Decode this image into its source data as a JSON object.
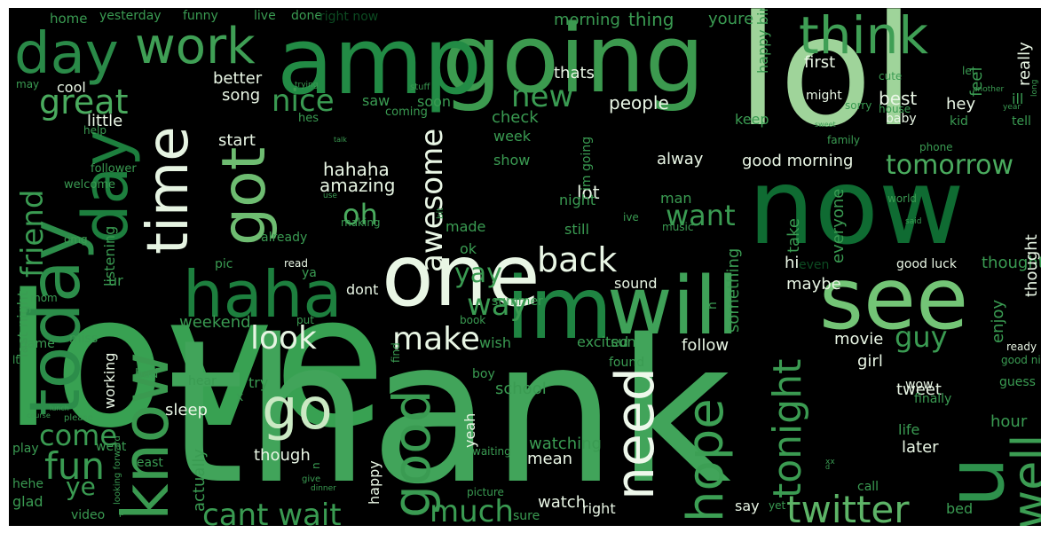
{
  "words": [
    {
      "text": "love",
      "color": "#3a9b52"
    },
    {
      "text": "thank",
      "color": "#41a45a"
    },
    {
      "text": "lol",
      "color": "#9fd49a"
    },
    {
      "text": "going",
      "color": "#3c9a4f"
    },
    {
      "text": "amp",
      "color": "#228b45"
    },
    {
      "text": "now",
      "color": "#0f6b32"
    },
    {
      "text": "im",
      "color": "#1f8442"
    },
    {
      "text": "will",
      "color": "#3fa158"
    },
    {
      "text": "see",
      "color": "#73c476"
    },
    {
      "text": "haha",
      "color": "#1d7f3e"
    },
    {
      "text": "one",
      "color": "#2e914c"
    },
    {
      "text": "u",
      "color": "#e9f6e5"
    },
    {
      "text": "day",
      "color": "#2a8a48"
    },
    {
      "text": "work",
      "color": "#3f9f55"
    },
    {
      "text": "think",
      "color": "#3f9f55"
    },
    {
      "text": "today",
      "color": "#2c8d4a"
    },
    {
      "text": "know",
      "color": "#3a9a50"
    },
    {
      "text": "time",
      "color": "#e6f4e2"
    },
    {
      "text": "got",
      "color": "#6ebc71"
    },
    {
      "text": "go",
      "color": "#cbe9c4"
    },
    {
      "text": "good",
      "color": "#3a9b52"
    },
    {
      "text": "need",
      "color": "#eef8eb"
    },
    {
      "text": "hope",
      "color": "#3c9f54"
    },
    {
      "text": "well",
      "color": "#3c9d53"
    },
    {
      "text": "twitter",
      "color": "#5db467"
    },
    {
      "text": "tonight",
      "color": "#3b9b52"
    },
    {
      "text": "great",
      "color": "#4aab5e"
    },
    {
      "text": "fun",
      "color": "#3a9b52"
    },
    {
      "text": "friend",
      "color": "#3a9b52"
    },
    {
      "text": "back",
      "color": "#e9f6e5"
    },
    {
      "text": "make",
      "color": "#e9f6e5"
    },
    {
      "text": "look",
      "color": "#e6f4e2"
    },
    {
      "text": "cant wait",
      "color": "#3a9b52"
    },
    {
      "text": "much",
      "color": "#3a9b52"
    },
    {
      "text": "come",
      "color": "#3a9b52"
    },
    {
      "text": "want",
      "color": "#3a9b52"
    },
    {
      "text": "new",
      "color": "#3a9b52"
    },
    {
      "text": "nice",
      "color": "#3a9b52"
    },
    {
      "text": "tomorrow",
      "color": "#4aab5e"
    },
    {
      "text": "awesome",
      "color": "#e9f6e5"
    },
    {
      "text": "way",
      "color": "#3a9b52"
    },
    {
      "text": "yay",
      "color": "#3a9b52"
    },
    {
      "text": "oh",
      "color": "#4aab5e"
    },
    {
      "text": "guy",
      "color": "#3a9b52"
    },
    {
      "text": "ye",
      "color": "#3a9b52"
    },
    {
      "text": "hahaha",
      "color": "#e9f6e5"
    },
    {
      "text": "amazing",
      "color": "#e6f4e2"
    },
    {
      "text": "lot",
      "color": "#e9f6e5"
    },
    {
      "text": "little",
      "color": "#e9f6e5"
    },
    {
      "text": "better",
      "color": "#e9f6e5"
    },
    {
      "text": "song",
      "color": "#e9f6e5"
    },
    {
      "text": "cool",
      "color": "#e9f6e5"
    },
    {
      "text": "start",
      "color": "#e9f6e5"
    },
    {
      "text": "people",
      "color": "#e9f6e5"
    },
    {
      "text": "best",
      "color": "#e9f6e5"
    },
    {
      "text": "first",
      "color": "#e9f6e5"
    },
    {
      "text": "hey",
      "color": "#e9f6e5"
    },
    {
      "text": "thats",
      "color": "#e9f6e5"
    },
    {
      "text": "alway",
      "color": "#e9f6e5"
    },
    {
      "text": "good morning",
      "color": "#e9f6e5"
    },
    {
      "text": "dont",
      "color": "#e9f6e5"
    },
    {
      "text": "follow",
      "color": "#e9f6e5"
    },
    {
      "text": "sleep",
      "color": "#e9f6e5"
    },
    {
      "text": "though",
      "color": "#e9f6e5"
    },
    {
      "text": "mean",
      "color": "#e9f6e5"
    },
    {
      "text": "watch",
      "color": "#e9f6e5"
    },
    {
      "text": "right",
      "color": "#e9f6e5"
    },
    {
      "text": "sound",
      "color": "#e9f6e5"
    },
    {
      "text": "hi",
      "color": "#e9f6e5"
    },
    {
      "text": "maybe",
      "color": "#e9f6e5"
    },
    {
      "text": "movie",
      "color": "#e9f6e5"
    },
    {
      "text": "girl",
      "color": "#e9f6e5"
    },
    {
      "text": "tweet",
      "color": "#e9f6e5"
    },
    {
      "text": "later",
      "color": "#e9f6e5"
    },
    {
      "text": "wow",
      "color": "#e9f6e5"
    },
    {
      "text": "say",
      "color": "#e9f6e5"
    },
    {
      "text": "read",
      "color": "#e9f6e5"
    },
    {
      "text": "home",
      "color": "#3a9b52"
    },
    {
      "text": "yesterday",
      "color": "#3a9b52"
    },
    {
      "text": "funny",
      "color": "#3a9b52"
    },
    {
      "text": "live",
      "color": "#3a9b52"
    },
    {
      "text": "done",
      "color": "#3a9b52"
    },
    {
      "text": "right now",
      "color": "#0c4a21"
    },
    {
      "text": "morning",
      "color": "#3a9b52"
    },
    {
      "text": "thing",
      "color": "#3a9b52"
    },
    {
      "text": "youre",
      "color": "#3a9b52"
    },
    {
      "text": "saw",
      "color": "#3a9b52"
    },
    {
      "text": "soon",
      "color": "#3a9b52"
    },
    {
      "text": "check",
      "color": "#3a9b52"
    },
    {
      "text": "week",
      "color": "#3a9b52"
    },
    {
      "text": "show",
      "color": "#3a9b52"
    },
    {
      "text": "night",
      "color": "#3a9b52"
    },
    {
      "text": "made",
      "color": "#3a9b52"
    },
    {
      "text": "ok",
      "color": "#3a9b52"
    },
    {
      "text": "still",
      "color": "#3a9b52"
    },
    {
      "text": "feel",
      "color": "#3a9b52"
    },
    {
      "text": "really",
      "color": "#3a9b52"
    },
    {
      "text": "keep",
      "color": "#3a9b52"
    },
    {
      "text": "man",
      "color": "#3a9b52"
    },
    {
      "text": "take",
      "color": "#3a9b52"
    },
    {
      "text": "everyone",
      "color": "#3a9b52"
    },
    {
      "text": "something",
      "color": "#3a9b52"
    },
    {
      "text": "enjoy",
      "color": "#3a9b52"
    },
    {
      "text": "thought",
      "color": "#3a9b52"
    },
    {
      "text": "ur",
      "color": "#3a9b52"
    },
    {
      "text": "weekend",
      "color": "#3a9b52"
    },
    {
      "text": "try",
      "color": "#3a9b52"
    },
    {
      "text": "school",
      "color": "#3a9b52"
    },
    {
      "text": "watching",
      "color": "#3a9b52"
    },
    {
      "text": "wish",
      "color": "#3a9b52"
    },
    {
      "text": "excited",
      "color": "#3a9b52"
    },
    {
      "text": "sun",
      "color": "#3a9b52"
    },
    {
      "text": "yeah",
      "color": "#3a9b52"
    },
    {
      "text": "happy",
      "color": "#3a9b52"
    },
    {
      "text": "actually",
      "color": "#3a9b52"
    },
    {
      "text": "last night",
      "color": "#3a9b52"
    },
    {
      "text": "working",
      "color": "#3a9b52"
    },
    {
      "text": "listening",
      "color": "#3a9b52"
    },
    {
      "text": "getting",
      "color": "#3a9b52"
    },
    {
      "text": "life",
      "color": "#3a9b52"
    },
    {
      "text": "hour",
      "color": "#3a9b52"
    },
    {
      "text": "bed",
      "color": "#3a9b52"
    },
    {
      "text": "ill",
      "color": "#3a9b52"
    },
    {
      "text": "glad",
      "color": "#3a9b52"
    },
    {
      "text": "play",
      "color": "#3a9b52"
    },
    {
      "text": "video",
      "color": "#3a9b52"
    },
    {
      "text": "hehe",
      "color": "#3a9b52"
    },
    {
      "text": "bad",
      "color": "#3a9b52"
    },
    {
      "text": "hear",
      "color": "#3a9b52"
    },
    {
      "text": "went",
      "color": "#3a9b52"
    },
    {
      "text": "least",
      "color": "#3a9b52"
    },
    {
      "text": "call",
      "color": "#3a9b52"
    },
    {
      "text": "finally",
      "color": "#3a9b52"
    },
    {
      "text": "guess",
      "color": "#3a9b52"
    },
    {
      "text": "found",
      "color": "#3a9b52"
    },
    {
      "text": "boy",
      "color": "#3a9b52"
    },
    {
      "text": "sure",
      "color": "#3a9b52"
    },
    {
      "text": "im going",
      "color": "#3a9b52"
    },
    {
      "text": "pic",
      "color": "#3a9b52"
    },
    {
      "text": "already",
      "color": "#3a9b52"
    },
    {
      "text": "help",
      "color": "#3a9b52"
    },
    {
      "text": "welcome",
      "color": "#3a9b52"
    },
    {
      "text": "follower",
      "color": "#3a9b52"
    },
    {
      "text": "may",
      "color": "#3a9b52"
    },
    {
      "text": "hes",
      "color": "#3a9b52"
    },
    {
      "text": "coming",
      "color": "#3a9b52"
    },
    {
      "text": "stuff",
      "color": "#3a9b52"
    },
    {
      "text": "trying",
      "color": "#3a9b52"
    },
    {
      "text": "happy birthday",
      "color": "#3a9b52"
    },
    {
      "text": "let",
      "color": "#3a9b52"
    },
    {
      "text": "cute",
      "color": "#3a9b52"
    },
    {
      "text": "sorry",
      "color": "#3a9b52"
    },
    {
      "text": "might",
      "color": "#3a9b52"
    },
    {
      "text": "house",
      "color": "#3a9b52"
    },
    {
      "text": "baby",
      "color": "#3a9b52"
    },
    {
      "text": "kid",
      "color": "#3a9b52"
    },
    {
      "text": "tell",
      "color": "#3a9b52"
    },
    {
      "text": "year",
      "color": "#3a9b52"
    },
    {
      "text": "another",
      "color": "#3a9b52"
    },
    {
      "text": "long",
      "color": "#3a9b52"
    },
    {
      "text": "phone",
      "color": "#3a9b52"
    },
    {
      "text": "world",
      "color": "#3a9b52"
    },
    {
      "text": "said",
      "color": "#3a9b52"
    },
    {
      "text": "even",
      "color": "#3a9b52"
    },
    {
      "text": "good luck",
      "color": "#0c4a21"
    },
    {
      "text": "good night",
      "color": "#3a9b52"
    },
    {
      "text": "ready",
      "color": "#3a9b52"
    },
    {
      "text": "ive",
      "color": "#3a9b52"
    },
    {
      "text": "music",
      "color": "#3a9b52"
    },
    {
      "text": "use",
      "color": "#3a9b52"
    },
    {
      "text": "making",
      "color": "#3a9b52"
    },
    {
      "text": "bit",
      "color": "#3a9b52"
    },
    {
      "text": "omg",
      "color": "#3a9b52"
    },
    {
      "text": "mom",
      "color": "#3a9b52"
    },
    {
      "text": "game",
      "color": "#3a9b52"
    },
    {
      "text": "lt",
      "color": "#3a9b52"
    },
    {
      "text": "miss",
      "color": "#3a9b52"
    },
    {
      "text": "put",
      "color": "#3a9b52"
    },
    {
      "text": "book",
      "color": "#3a9b52"
    },
    {
      "text": "find",
      "color": "#3a9b52"
    },
    {
      "text": "summer",
      "color": "#3a9b52"
    },
    {
      "text": "x",
      "color": "#3a9b52"
    },
    {
      "text": "ya",
      "color": "#3a9b52"
    },
    {
      "text": "waiting",
      "color": "#3a9b52"
    },
    {
      "text": "n",
      "color": "#3a9b52"
    },
    {
      "text": "give",
      "color": "#3a9b52"
    },
    {
      "text": "dinner",
      "color": "#3a9b52"
    },
    {
      "text": "picture",
      "color": "#3a9b52"
    },
    {
      "text": "yet",
      "color": "#3a9b52"
    },
    {
      "text": "p",
      "color": "#3a9b52"
    },
    {
      "text": "looking forward",
      "color": "#3a9b52"
    },
    {
      "text": "lunch",
      "color": "#3a9b52"
    },
    {
      "text": "please",
      "color": "#3a9b52"
    },
    {
      "text": "course",
      "color": "#3a9b52"
    },
    {
      "text": "xx",
      "color": "#3a9b52"
    },
    {
      "text": "talk",
      "color": "#3a9b52"
    },
    {
      "text": "sweet",
      "color": "#3a9b52"
    },
    {
      "text": "family",
      "color": "#3a9b52"
    },
    {
      "text": "d",
      "color": "#3a9b52"
    },
    {
      "text": "name",
      "color": "#3a9b52"
    }
  ]
}
